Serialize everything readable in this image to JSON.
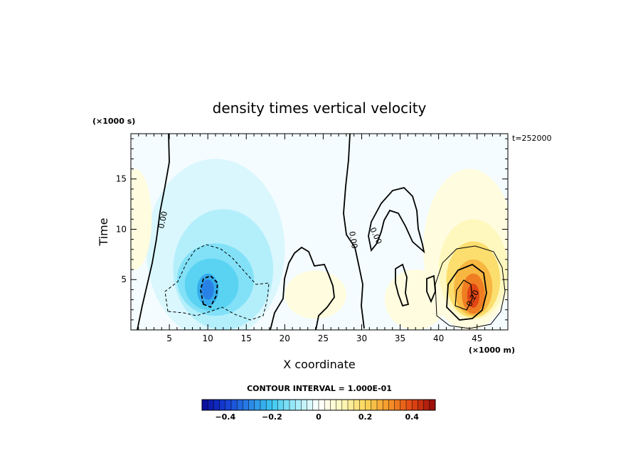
{
  "chart_data": {
    "type": "heatmap",
    "title": "density times vertical velocity",
    "xlabel": "X coordinate",
    "ylabel": "Time",
    "x_unit": "(×1000 m)",
    "y_unit": "(×1000 s)",
    "time_stamp": "t=252000",
    "xlim": [
      0,
      49
    ],
    "ylim": [
      0,
      19.5
    ],
    "x_ticks": [
      5,
      10,
      15,
      20,
      25,
      30,
      35,
      40,
      45
    ],
    "y_ticks": [
      5,
      10,
      15
    ],
    "x_tick_labels": [
      "5",
      "10",
      "15",
      "20",
      "25",
      "30",
      "35",
      "40",
      "45"
    ],
    "y_tick_labels": [
      "5",
      "10",
      "15"
    ],
    "contour_interval_text": "CONTOUR INTERVAL = 1.000E-01",
    "contour_labels": [
      "0.00",
      "0.00",
      "0.00",
      "0.20"
    ],
    "colorbar": {
      "min": -0.5,
      "max": 0.5,
      "tick_values": [
        -0.4,
        -0.2,
        0,
        0.2,
        0.4
      ],
      "tick_labels": [
        "−0.4",
        "−0.2",
        "0",
        "0.2",
        "0.4"
      ]
    },
    "features": [
      {
        "name": "negative updraft core",
        "x": 10,
        "y": 4,
        "peak_value": -0.3
      },
      {
        "name": "positive updraft core",
        "x": 44.5,
        "y": 3.5,
        "peak_value": 0.4
      }
    ],
    "grid": false
  }
}
